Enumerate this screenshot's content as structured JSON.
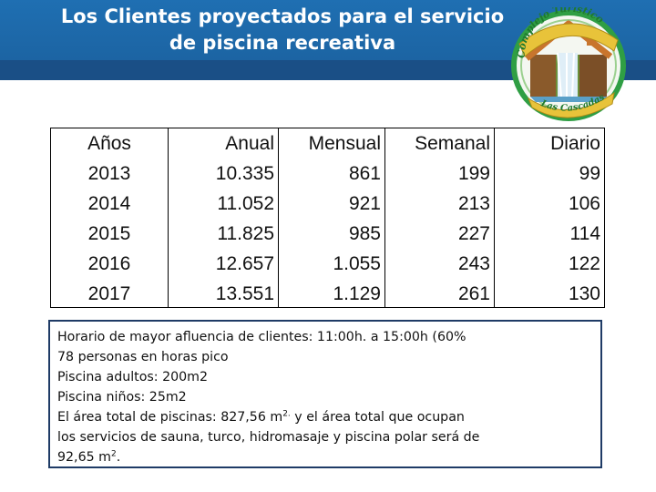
{
  "title": {
    "line1": "Los Clientes proyectados para el servicio",
    "line2": "de piscina recreativa"
  },
  "logo": {
    "icon": "house-waterfall-logo-icon",
    "top_text": "Complejo Turístico",
    "bottom_text": "Las Cascadas",
    "colors": {
      "ring": "#2f9e44",
      "ribbon": "#e8c33a",
      "house": "#c8752d"
    }
  },
  "table": {
    "headers": [
      "Años",
      "Anual",
      "Mensual",
      "Semanal",
      "Diario"
    ],
    "rows": [
      [
        "2013",
        "10.335",
        "861",
        "199",
        "99"
      ],
      [
        "2014",
        "11.052",
        "921",
        "213",
        "106"
      ],
      [
        "2015",
        "11.825",
        "985",
        "227",
        "114"
      ],
      [
        "2016",
        "12.657",
        "1.055",
        "243",
        "122"
      ],
      [
        "2017",
        "13.551",
        "1.129",
        "261",
        "130"
      ]
    ]
  },
  "notes": {
    "line1": "Horario de mayor afluencia de clientes: 11:00h. a 15:00h (60%",
    "line2": "78 personas en horas pico",
    "line3": "Piscina adultos: 200m2",
    "line4": "Piscina niños: 25m2",
    "line5_a": "El área total de piscinas: 827,56 m",
    "line5_sup": "2.",
    "line5_b": " y el área total que ocupan",
    "line6": "los servicios de sauna, turco, hidromasaje y piscina polar será de",
    "line7_a": "92,65 m",
    "line7_sup": "2",
    "line7_b": "."
  }
}
